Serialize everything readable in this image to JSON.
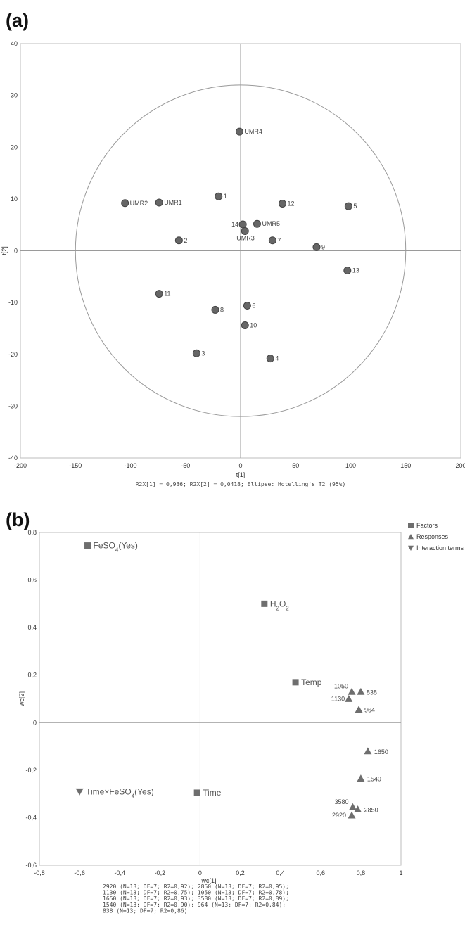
{
  "chart_data": [
    {
      "type": "scatter",
      "panel_label": "(a)",
      "xlabel": "t[1]",
      "ylabel": "t[2]",
      "xlim": [
        -200,
        200
      ],
      "ylim": [
        -40,
        40
      ],
      "xticks": [
        "-200",
        "-150",
        "-100",
        "-50",
        "0",
        "50",
        "100",
        "150",
        "200"
      ],
      "yticks": [
        "40",
        "30",
        "20",
        "10",
        "0",
        "-10",
        "-20",
        "-30",
        "-40"
      ],
      "footer": "R2X[1] = 0,936; R2X[2] = 0,0418; Ellipse: Hotelling's T2 (95%)",
      "ellipse": {
        "rx": 150,
        "ry": 32
      },
      "points": [
        {
          "label": "UMR4",
          "x": -1,
          "y": 23
        },
        {
          "label": "UMR2",
          "x": -105,
          "y": 9.2
        },
        {
          "label": "UMR1",
          "x": -74,
          "y": 9.3
        },
        {
          "label": "1",
          "x": -20,
          "y": 10.5
        },
        {
          "label": "12",
          "x": 38,
          "y": 9.1
        },
        {
          "label": "5",
          "x": 98,
          "y": 8.6
        },
        {
          "label": "14",
          "x": 2,
          "y": 5.1
        },
        {
          "label": "UMR5",
          "x": 15,
          "y": 5.2
        },
        {
          "label": "UMR3",
          "x": 4,
          "y": 3.8
        },
        {
          "label": "2",
          "x": -56,
          "y": 2
        },
        {
          "label": "7",
          "x": 29,
          "y": 2
        },
        {
          "label": "9",
          "x": 69,
          "y": 0.7
        },
        {
          "label": "13",
          "x": 97,
          "y": -3.8
        },
        {
          "label": "11",
          "x": -74,
          "y": -8.3
        },
        {
          "label": "8",
          "x": -23,
          "y": -11.4
        },
        {
          "label": "6",
          "x": 6,
          "y": -10.6
        },
        {
          "label": "10",
          "x": 4,
          "y": -14.4
        },
        {
          "label": "3",
          "x": -40,
          "y": -19.8
        },
        {
          "label": "4",
          "x": 27,
          "y": -20.8
        }
      ]
    },
    {
      "type": "scatter",
      "panel_label": "(b)",
      "xlabel": "wc[1]",
      "ylabel": "wc[2]",
      "xlim": [
        -0.8,
        1
      ],
      "ylim": [
        -0.6,
        0.8
      ],
      "xticks": [
        "-0,8",
        "-0,6",
        "-0,4",
        "-0,2",
        "0",
        "0,2",
        "0,4",
        "0,6",
        "0,8",
        "1"
      ],
      "yticks": [
        "0,8",
        "0,6",
        "0,4",
        "0,2",
        "0",
        "-0,2",
        "-0,4",
        "-0,6"
      ],
      "legend": [
        {
          "name": "Factors",
          "marker": "square"
        },
        {
          "name": "Responses",
          "marker": "triangle-up"
        },
        {
          "name": "Interaction terms",
          "marker": "triangle-down"
        }
      ],
      "series": [
        {
          "name": "Factors",
          "marker": "square",
          "points": [
            {
              "label": "FeSO",
              "sub": "4",
              "suffix": "(Yes)",
              "x": -0.56,
              "y": 0.745
            },
            {
              "label": "H",
              "sub": "2",
              "suffix": "O",
              "sub2": "2",
              "x": 0.32,
              "y": 0.5
            },
            {
              "label": "Temp",
              "x": 0.475,
              "y": 0.17
            },
            {
              "label": "Time",
              "x": -0.015,
              "y": -0.295
            }
          ]
        },
        {
          "name": "Responses",
          "marker": "triangle-up",
          "points": [
            {
              "label": "1050",
              "x": 0.755,
              "y": 0.13
            },
            {
              "label": "838",
              "x": 0.8,
              "y": 0.13
            },
            {
              "label": "1130",
              "x": 0.74,
              "y": 0.1
            },
            {
              "label": "964",
              "x": 0.79,
              "y": 0.055
            },
            {
              "label": "1650",
              "x": 0.835,
              "y": -0.12
            },
            {
              "label": "1540",
              "x": 0.8,
              "y": -0.235
            },
            {
              "label": "3580",
              "x": 0.76,
              "y": -0.355
            },
            {
              "label": "2850",
              "x": 0.785,
              "y": -0.365
            },
            {
              "label": "2920",
              "x": 0.755,
              "y": -0.39
            }
          ]
        },
        {
          "name": "Interaction terms",
          "marker": "triangle-down",
          "points": [
            {
              "label": "Time×FeSO",
              "sub": "4",
              "suffix": "(Yes)",
              "x": -0.6,
              "y": -0.29
            }
          ]
        }
      ],
      "footer_lines": [
        "2920 (N=13; DF=7; R2=0,92); 2850 (N=13; DF=7; R2=0,95);",
        "1130 (N=13; DF=7; R2=0,75); 1050 (N=13; DF=7; R2=0,78);",
        "1650 (N=13; DF=7; R2=0,93); 3580 (N=13; DF=7; R2=0,89);",
        "1540 (N=13; DF=7; R2=0,90); 964 (N=13; DF=7; R2=0,84);",
        "838 (N=13; DF=7; R2=0,86)"
      ]
    }
  ]
}
